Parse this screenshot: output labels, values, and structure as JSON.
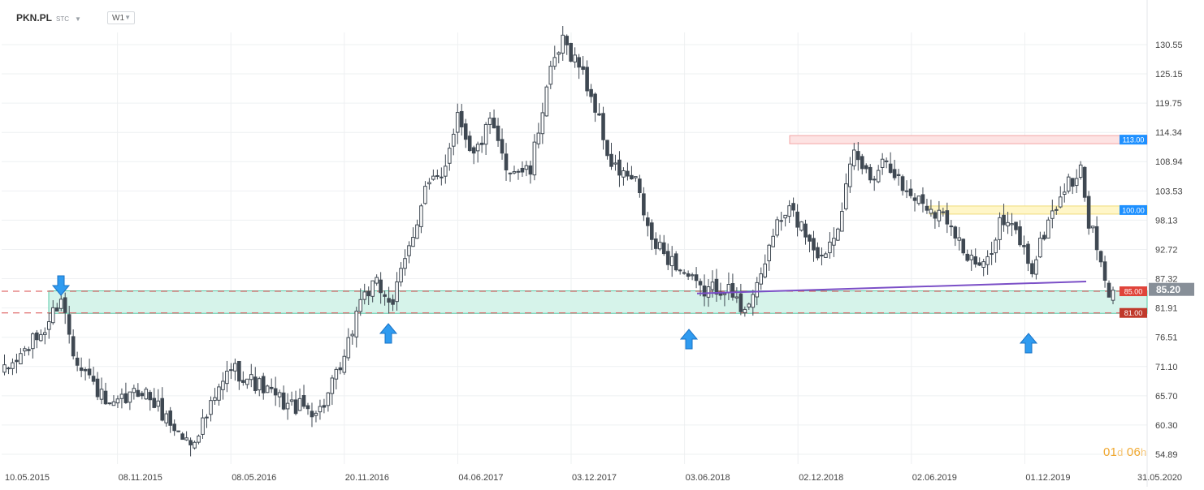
{
  "header": {
    "symbol": "PKN.PL",
    "source": "STC",
    "timeframe": "W1"
  },
  "countdown": {
    "days": "01",
    "days_unit": "d",
    "hours": "06",
    "hours_unit": "h"
  },
  "colors": {
    "candle": "#3f4852",
    "grid": "#eef0f2",
    "zone_fill": "#d6f3ea",
    "zone_stroke": "#57c9a8",
    "resistance_fill": "#fde3e3",
    "resistance_stroke": "#f3a5a5",
    "mid_fill": "#fff6c8",
    "mid_stroke": "#f0dc7a",
    "trendline": "#7b4fc7",
    "dashed": "#d84a4a",
    "arrow": "#2f9bf0",
    "price_tag": "#878f98",
    "level_blue": "#1e90ff",
    "level_red": "#c0392b",
    "level_red2": "#e0443a"
  },
  "chart_data": {
    "type": "candlestick",
    "title": "",
    "y_axis": {
      "ticks": [
        "130.55",
        "125.15",
        "119.75",
        "114.34",
        "108.94",
        "103.53",
        "98.13",
        "92.72",
        "87.32",
        "81.91",
        "76.51",
        "71.10",
        "65.70",
        "60.30",
        "54.89"
      ],
      "range": [
        54.89,
        130.55
      ]
    },
    "x_axis": {
      "tick_labels": [
        "10.05.2015",
        "08.11.2015",
        "08.05.2016",
        "20.11.2016",
        "04.06.2017",
        "03.12.2017",
        "03.06.2018",
        "02.12.2018",
        "02.06.2019",
        "01.12.2019",
        "31.05.2020"
      ]
    },
    "grid": true,
    "current_price": "85.20",
    "levels": [
      {
        "label": "113.00",
        "value": 113.0,
        "style": "resistance-zone",
        "color": "blue"
      },
      {
        "label": "100.00",
        "value": 100.0,
        "style": "zone",
        "color": "blue"
      },
      {
        "label": "85.00",
        "value": 85.0,
        "style": "dashed-line",
        "color": "red"
      },
      {
        "label": "81.00",
        "value": 81.0,
        "style": "dashed-line",
        "color": "darkred"
      }
    ],
    "support_zone": [
      81.0,
      85.0
    ],
    "trendline": {
      "from": {
        "date": "03.06.2018",
        "value": 84.6
      },
      "to": {
        "date": "31.05.2020",
        "value": 86.8
      }
    },
    "markers": [
      {
        "date": "10.05.2015",
        "kind": "down-arrow"
      },
      {
        "date": "20.11.2016",
        "kind": "up-arrow"
      },
      {
        "date": "03.06.2018",
        "kind": "up-arrow"
      },
      {
        "date": "01.12.2019",
        "kind": "up-arrow"
      }
    ],
    "path_keypoints": [
      {
        "week": 0,
        "close": 70
      },
      {
        "week": 10,
        "close": 78
      },
      {
        "week": 14,
        "close": 84
      },
      {
        "week": 17,
        "close": 74
      },
      {
        "week": 26,
        "close": 63
      },
      {
        "week": 34,
        "close": 67
      },
      {
        "week": 44,
        "close": 58
      },
      {
        "week": 46,
        "close": 57
      },
      {
        "week": 50,
        "close": 62
      },
      {
        "week": 56,
        "close": 71
      },
      {
        "week": 62,
        "close": 68
      },
      {
        "week": 70,
        "close": 64
      },
      {
        "week": 78,
        "close": 63
      },
      {
        "week": 84,
        "close": 72
      },
      {
        "week": 88,
        "close": 84
      },
      {
        "week": 92,
        "close": 86
      },
      {
        "week": 96,
        "close": 83
      },
      {
        "week": 100,
        "close": 93
      },
      {
        "week": 104,
        "close": 104
      },
      {
        "week": 108,
        "close": 106
      },
      {
        "week": 112,
        "close": 118
      },
      {
        "week": 116,
        "close": 110
      },
      {
        "week": 120,
        "close": 116
      },
      {
        "week": 124,
        "close": 108
      },
      {
        "week": 130,
        "close": 107
      },
      {
        "week": 134,
        "close": 123
      },
      {
        "week": 138,
        "close": 131
      },
      {
        "week": 142,
        "close": 127
      },
      {
        "week": 146,
        "close": 119
      },
      {
        "week": 150,
        "close": 108
      },
      {
        "week": 156,
        "close": 105
      },
      {
        "week": 160,
        "close": 94
      },
      {
        "week": 166,
        "close": 90
      },
      {
        "week": 172,
        "close": 85
      },
      {
        "week": 178,
        "close": 86
      },
      {
        "week": 182,
        "close": 82
      },
      {
        "week": 186,
        "close": 85
      },
      {
        "week": 190,
        "close": 96
      },
      {
        "week": 194,
        "close": 100
      },
      {
        "week": 198,
        "close": 96
      },
      {
        "week": 202,
        "close": 91
      },
      {
        "week": 206,
        "close": 98
      },
      {
        "week": 210,
        "close": 110
      },
      {
        "week": 214,
        "close": 106
      },
      {
        "week": 218,
        "close": 110
      },
      {
        "week": 222,
        "close": 104
      },
      {
        "week": 228,
        "close": 101
      },
      {
        "week": 234,
        "close": 98
      },
      {
        "week": 238,
        "close": 91
      },
      {
        "week": 242,
        "close": 89
      },
      {
        "week": 246,
        "close": 98
      },
      {
        "week": 250,
        "close": 96
      },
      {
        "week": 254,
        "close": 89
      },
      {
        "week": 258,
        "close": 98
      },
      {
        "week": 262,
        "close": 104
      },
      {
        "week": 266,
        "close": 107
      },
      {
        "week": 268,
        "close": 98
      },
      {
        "week": 270,
        "close": 93
      },
      {
        "week": 273,
        "close": 83
      },
      {
        "week": 274,
        "close": 85.2
      }
    ]
  }
}
